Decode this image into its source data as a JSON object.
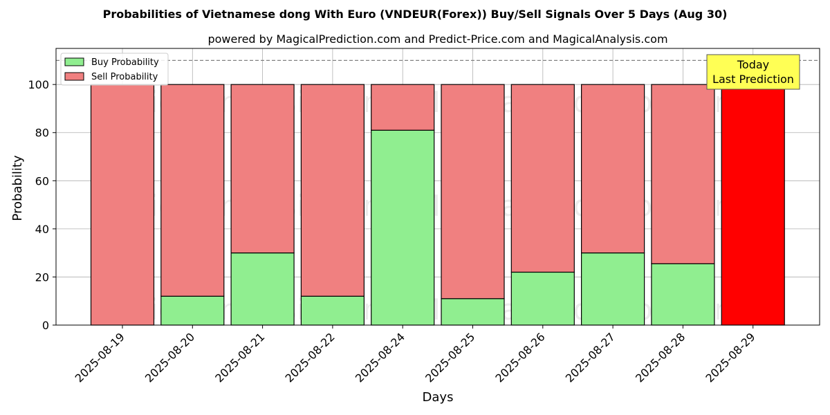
{
  "chart_data": {
    "type": "bar",
    "stacked": true,
    "title": "Probabilities of Vietnamese dong With Euro (VNDEUR(Forex)) Buy/Sell Signals Over 5 Days (Aug 30)",
    "subtitle": "powered by MagicalPrediction.com and Predict-Price.com and MagicalAnalysis.com",
    "xlabel": "Days",
    "ylabel": "Probability",
    "ylim": [
      0,
      115
    ],
    "yticks": [
      0,
      20,
      40,
      60,
      80,
      100
    ],
    "grid": true,
    "legend_position": "top-left",
    "categories": [
      "2025-08-19",
      "2025-08-20",
      "2025-08-21",
      "2025-08-22",
      "2025-08-24",
      "2025-08-25",
      "2025-08-26",
      "2025-08-27",
      "2025-08-28",
      "2025-08-29"
    ],
    "series": [
      {
        "name": "Buy Probability",
        "color": "#90ee90",
        "values": [
          0,
          12,
          30,
          12,
          81,
          11,
          22,
          30,
          25.5,
          0
        ]
      },
      {
        "name": "Sell Probability",
        "color": "#f08080",
        "values": [
          100,
          88,
          70,
          88,
          19,
          89,
          78,
          70,
          74.5,
          100
        ]
      }
    ],
    "highlight": {
      "index": 9,
      "color": "#ff0000"
    },
    "reference_line": {
      "y": 110,
      "style": "dashed",
      "color": "#808080"
    },
    "annotation": {
      "lines": [
        "Today",
        "Last Prediction"
      ],
      "background": "#ffff55"
    },
    "watermarks": [
      "MagicalAnalysis.com",
      "MagicalPrediction.com"
    ]
  }
}
